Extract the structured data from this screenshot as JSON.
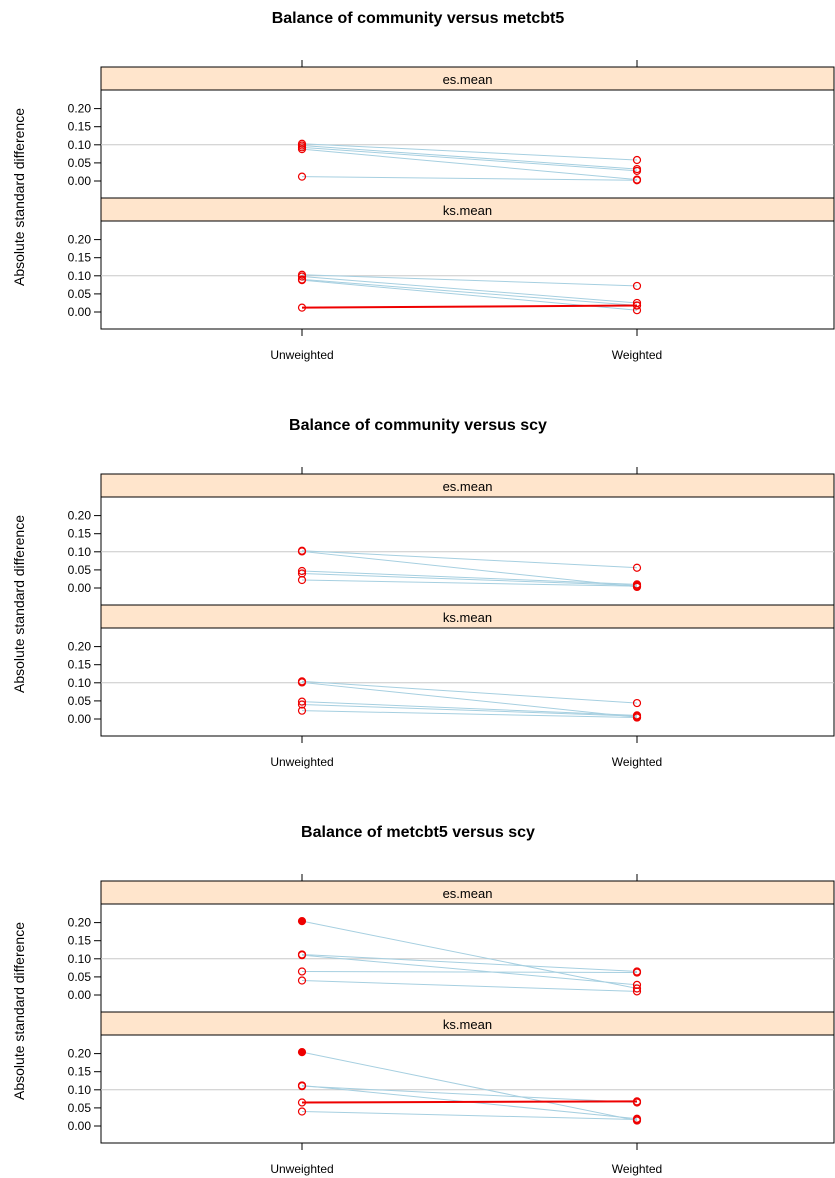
{
  "chart_data": [
    {
      "type": "line",
      "title": "Balance of community versus metcbt5",
      "ylabel": "Absolute standard difference",
      "categories": [
        "Unweighted",
        "Weighted"
      ],
      "yticks": [
        "0.00",
        "0.05",
        "0.10",
        "0.15",
        "0.20"
      ],
      "ylim": [
        -0.05,
        0.25
      ],
      "panels": [
        {
          "name": "es.mean",
          "lines": [
            {
              "values": [
                0.103,
                0.058
              ],
              "highlight": false
            },
            {
              "values": [
                0.098,
                0.033
              ],
              "highlight": false
            },
            {
              "values": [
                0.093,
                0.028
              ],
              "highlight": false
            },
            {
              "values": [
                0.088,
                0.004
              ],
              "highlight": false
            },
            {
              "values": [
                0.012,
                0.002
              ],
              "highlight": false
            }
          ]
        },
        {
          "name": "ks.mean",
          "lines": [
            {
              "values": [
                0.103,
                0.072
              ],
              "highlight": false
            },
            {
              "values": [
                0.098,
                0.025
              ],
              "highlight": false
            },
            {
              "values": [
                0.09,
                0.018
              ],
              "highlight": false
            },
            {
              "values": [
                0.088,
                0.005
              ],
              "highlight": false
            },
            {
              "values": [
                0.012,
                0.018
              ],
              "highlight": true
            }
          ]
        }
      ]
    },
    {
      "type": "line",
      "title": "Balance of community versus scy",
      "ylabel": "Absolute standard difference",
      "categories": [
        "Unweighted",
        "Weighted"
      ],
      "yticks": [
        "0.00",
        "0.05",
        "0.10",
        "0.15",
        "0.20"
      ],
      "ylim": [
        -0.05,
        0.25
      ],
      "panels": [
        {
          "name": "es.mean",
          "lines": [
            {
              "values": [
                0.103,
                0.056
              ],
              "highlight": false
            },
            {
              "values": [
                0.101,
                0.003
              ],
              "highlight": false
            },
            {
              "values": [
                0.047,
                0.01
              ],
              "highlight": false
            },
            {
              "values": [
                0.04,
                0.007
              ],
              "highlight": false
            },
            {
              "values": [
                0.022,
                0.005
              ],
              "highlight": false
            }
          ]
        },
        {
          "name": "ks.mean",
          "lines": [
            {
              "values": [
                0.104,
                0.044
              ],
              "highlight": false
            },
            {
              "values": [
                0.101,
                0.005
              ],
              "highlight": false
            },
            {
              "values": [
                0.048,
                0.01
              ],
              "highlight": false
            },
            {
              "values": [
                0.04,
                0.008
              ],
              "highlight": false
            },
            {
              "values": [
                0.023,
                0.004
              ],
              "highlight": false
            }
          ]
        }
      ]
    },
    {
      "type": "line",
      "title": "Balance of metcbt5 versus scy",
      "ylabel": "Absolute standard difference",
      "categories": [
        "Unweighted",
        "Weighted"
      ],
      "yticks": [
        "0.00",
        "0.05",
        "0.10",
        "0.15",
        "0.20"
      ],
      "ylim": [
        -0.05,
        0.25
      ],
      "panels": [
        {
          "name": "es.mean",
          "lines": [
            {
              "values": [
                0.204,
                0.018
              ],
              "highlight": false,
              "filledStart": true
            },
            {
              "values": [
                0.112,
                0.065
              ],
              "highlight": false
            },
            {
              "values": [
                0.11,
                0.028
              ],
              "highlight": false
            },
            {
              "values": [
                0.065,
                0.062
              ],
              "highlight": false
            },
            {
              "values": [
                0.04,
                0.01
              ],
              "highlight": false
            }
          ]
        },
        {
          "name": "ks.mean",
          "lines": [
            {
              "values": [
                0.204,
                0.015
              ],
              "highlight": false,
              "filledStart": true
            },
            {
              "values": [
                0.112,
                0.02
              ],
              "highlight": false
            },
            {
              "values": [
                0.11,
                0.065
              ],
              "highlight": false
            },
            {
              "values": [
                0.065,
                0.068
              ],
              "highlight": true
            },
            {
              "values": [
                0.04,
                0.018
              ],
              "highlight": false
            }
          ]
        }
      ]
    }
  ],
  "colors": {
    "strip": "#ffe5cc",
    "line": "#a6cfe0",
    "highlight_line": "#ee0000",
    "marker": "#ee0000",
    "reference_line": "#c8c8c8"
  }
}
